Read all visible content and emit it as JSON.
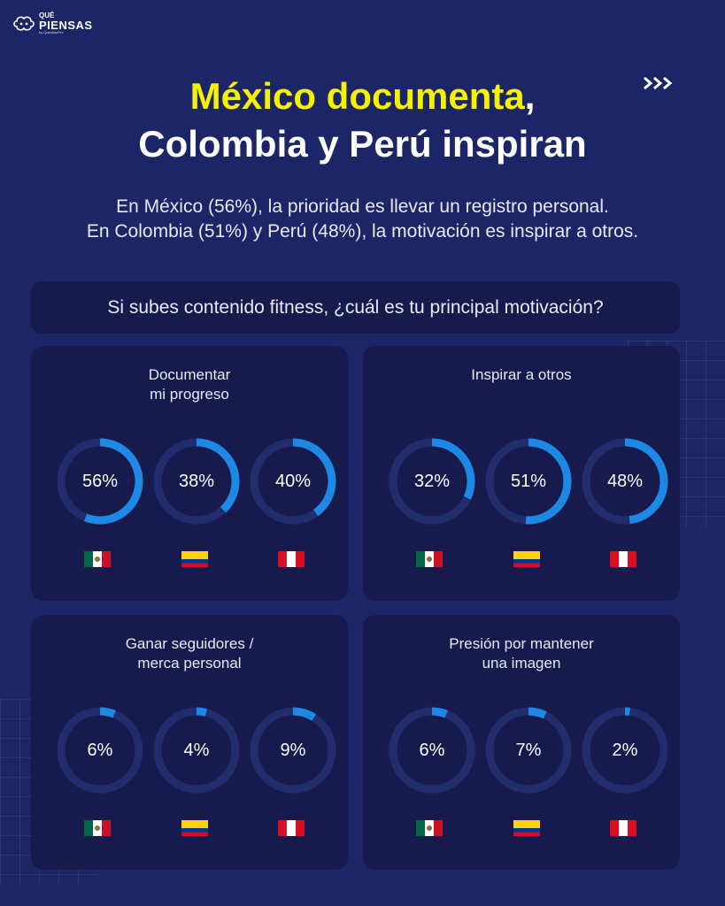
{
  "brand": {
    "que": "QUÉ",
    "piensas": "PIENSAS",
    "by": "by QuestionPro"
  },
  "title": {
    "highlight": "México documenta",
    "rest_line1": ",",
    "line2": "Colombia y Perú inspiran"
  },
  "subtitle": {
    "line1": "En México (56%), la prioridad es llevar un registro personal.",
    "line2": "En Colombia (51%) y Perú (48%), la motivación es inspirar a otros."
  },
  "question": "Si subes contenido fitness, ¿cuál es tu principal motivación?",
  "colors": {
    "background": "#1c2566",
    "card": "#161a4d",
    "track": "#222d6e",
    "arc": "#1e88e5",
    "highlight": "#f5f100"
  },
  "chart_data": [
    {
      "type": "donut",
      "title_line1": "Documentar",
      "title_line2": "mi progreso",
      "categories": [
        "México",
        "Colombia",
        "Perú"
      ],
      "values": [
        56,
        38,
        40
      ],
      "labels": [
        "56%",
        "38%",
        "40%"
      ],
      "flags": [
        "mx",
        "co",
        "pe"
      ]
    },
    {
      "type": "donut",
      "title_line1": "Inspirar a otros",
      "title_line2": "",
      "categories": [
        "México",
        "Colombia",
        "Perú"
      ],
      "values": [
        32,
        51,
        48
      ],
      "labels": [
        "32%",
        "51%",
        "48%"
      ],
      "flags": [
        "mx",
        "co",
        "pe"
      ]
    },
    {
      "type": "donut",
      "title_line1": "Ganar seguidores /",
      "title_line2": "merca personal",
      "categories": [
        "México",
        "Colombia",
        "Perú"
      ],
      "values": [
        6,
        4,
        9
      ],
      "labels": [
        "6%",
        "4%",
        "9%"
      ],
      "flags": [
        "mx",
        "co",
        "pe"
      ]
    },
    {
      "type": "donut",
      "title_line1": "Presión por mantener",
      "title_line2": "una imagen",
      "categories": [
        "México",
        "Colombia",
        "Perú"
      ],
      "values": [
        6,
        7,
        2
      ],
      "labels": [
        "6%",
        "7%",
        "2%"
      ],
      "flags": [
        "mx",
        "co",
        "pe"
      ]
    }
  ]
}
